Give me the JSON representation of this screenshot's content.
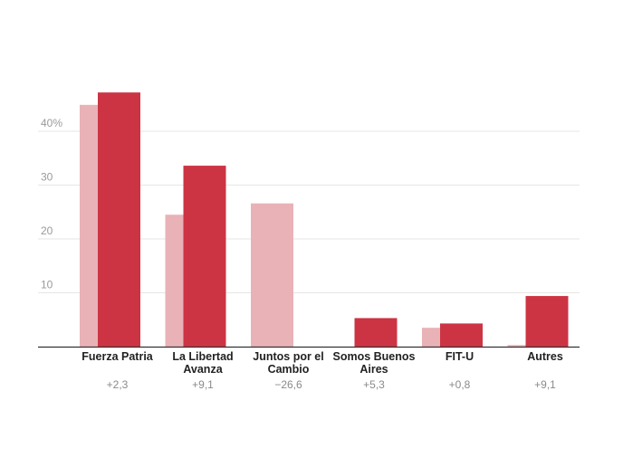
{
  "chart_data": {
    "type": "bar",
    "categories": [
      "Fuerza Patria",
      "La Libertad Avanza",
      "Juntos por el Cambio",
      "Somos Buenos Aires",
      "FIT-U",
      "Autres"
    ],
    "category_lines": [
      [
        "Fuerza Patria"
      ],
      [
        "La Libertad",
        "Avanza"
      ],
      [
        "Juntos por el",
        "Cambio"
      ],
      [
        "Somos Buenos",
        "Aires"
      ],
      [
        "FIT-U"
      ],
      [
        "Autres"
      ]
    ],
    "series": [
      {
        "values": [
          44.9,
          24.5,
          26.6,
          0,
          3.5,
          0.3
        ],
        "color": "#e9b2b7"
      },
      {
        "values": [
          47.2,
          33.6,
          0,
          5.3,
          4.3,
          9.4
        ],
        "color": "#cc3444"
      }
    ],
    "changes": [
      "+2,3",
      "+9,1",
      "−26,6",
      "+5,3",
      "+0,8",
      "+9,1"
    ],
    "y_ticks": [
      {
        "value": 10,
        "label": "10"
      },
      {
        "value": 20,
        "label": "20"
      },
      {
        "value": 30,
        "label": "30"
      },
      {
        "value": 40,
        "label": "40%"
      }
    ],
    "ylim": [
      0,
      50
    ],
    "grid": true,
    "title": "",
    "xlabel": "",
    "ylabel": ""
  }
}
